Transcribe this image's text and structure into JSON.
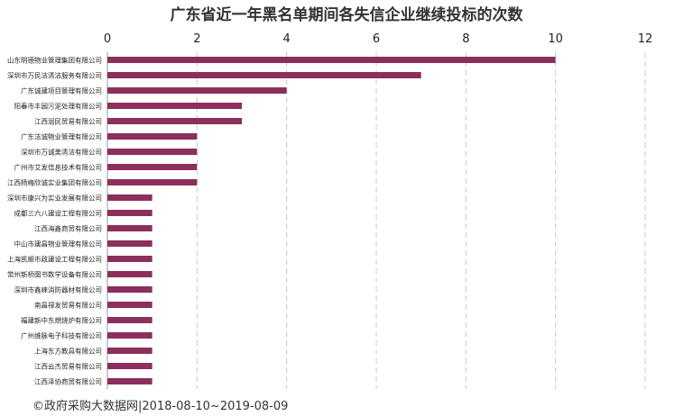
{
  "chart_data": {
    "type": "bar",
    "orientation": "horizontal",
    "title": "广东省近一年黑名单期间各失信企业继续投标的次数",
    "xlabel": "",
    "ylabel": "",
    "xlim": [
      0,
      12
    ],
    "x_ticks": [
      0,
      2,
      4,
      6,
      8,
      10,
      12
    ],
    "grid": "vertical dashed",
    "bar_color": "#8b2f5c",
    "categories": [
      "山东明德物业管理集团有限公司",
      "深圳市万民洁清洁服务有限公司",
      "广东诚建项目管理有限公司",
      "阳春市丰园污泥处理有限公司",
      "江西润民贸易有限公司",
      "广东洁诚物业管理有限公司",
      "深圳市万诚美清洁有限公司",
      "广州市艾发信息技术有限公司",
      "江西杨梅欣诚实业集团有限公司",
      "深圳市康兴为实业发展有限公司",
      "成都三六八建设工程有限公司",
      "江西海鑫商贸有限公司",
      "中山市建昌物业管理有限公司",
      "上海凯顺市政建设工程有限公司",
      "常州新桥图书数学设备有限公司",
      "深圳市鑫崃消防器材有限公司",
      "南昌禄发贸易有限公司",
      "福建新中东燃烧炉有限公司",
      "广州维脉电子科技有限公司",
      "上海东方教具有限公司",
      "江西云杰贸易有限公司",
      "江西泽协商贸有限公司"
    ],
    "values": [
      10,
      7,
      4,
      3,
      3,
      2,
      2,
      2,
      2,
      1,
      1,
      1,
      1,
      1,
      1,
      1,
      1,
      1,
      1,
      1,
      1,
      1
    ]
  },
  "footer": "©政府采购大数据网|2018-08-10~2019-08-09"
}
